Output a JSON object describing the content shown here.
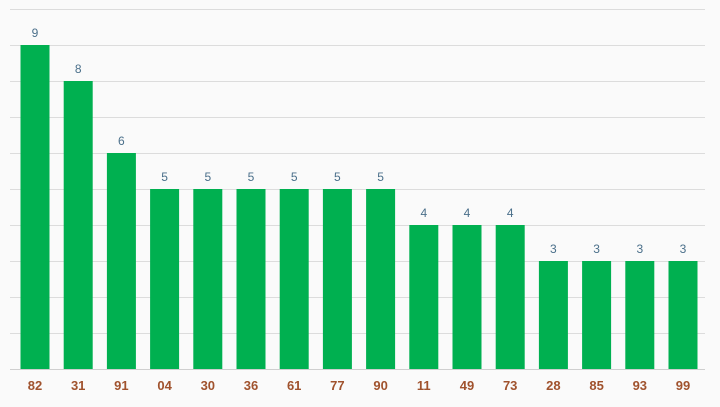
{
  "chart_data": {
    "type": "bar",
    "title": "",
    "xlabel": "",
    "ylabel": "",
    "categories": [
      "82",
      "31",
      "91",
      "04",
      "30",
      "36",
      "61",
      "77",
      "90",
      "11",
      "49",
      "73",
      "28",
      "85",
      "93",
      "99"
    ],
    "values": [
      9,
      8,
      6,
      5,
      5,
      5,
      5,
      5,
      5,
      4,
      4,
      4,
      3,
      3,
      3,
      3
    ],
    "ylim": [
      0,
      10
    ],
    "grid": true,
    "gridlines": 10,
    "data_labels": true,
    "colors": {
      "bar": "#00b050",
      "value_label": "#4a6f8a",
      "tick_label": "#a0522d",
      "grid": "#dcdcdc",
      "background": "#fafafa"
    }
  }
}
